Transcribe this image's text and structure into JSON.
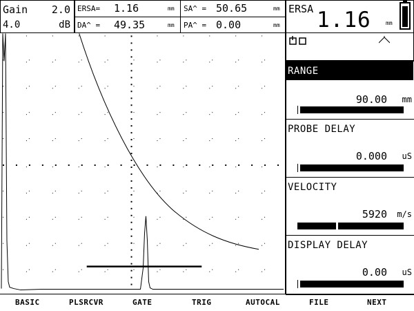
{
  "header": {
    "gain_label": "Gain",
    "gain_value": "2.0",
    "gain_step": "4.0",
    "gain_unit": "dB",
    "ersa_label": "ERSA=",
    "ersa_value": "1.16",
    "ersa_unit": "mm",
    "da_label": "DA^ =",
    "da_value": "49.35",
    "da_unit": "mm",
    "sa_label": "SA^ =",
    "sa_value": "50.65",
    "sa_unit": "mm",
    "pa_label": "PA^ =",
    "pa_value": "0.00",
    "pa_unit": "mm",
    "big_label": "ERSA",
    "big_value": "1.16",
    "big_unit": "mm"
  },
  "status": {
    "left_icons": "freeze-icon",
    "right_icon": "peak-icon"
  },
  "panels": [
    {
      "title": "RANGE",
      "value": "90.00",
      "unit": "mm",
      "selected": true
    },
    {
      "title": "PROBE DELAY",
      "value": "0.000",
      "unit": "uS",
      "selected": false
    },
    {
      "title": "VELOCITY",
      "value": "5920",
      "unit": "m/s",
      "selected": false
    },
    {
      "title": "DISPLAY DELAY",
      "value": "0.00",
      "unit": "uS",
      "selected": false
    }
  ],
  "menu": [
    "BASIC",
    "PLSRCVR",
    "GATE",
    "TRIG",
    "AUTOCAL",
    "FILE",
    "NEXT"
  ],
  "colors": {
    "foreground": "#000000",
    "background": "#ffffff"
  }
}
